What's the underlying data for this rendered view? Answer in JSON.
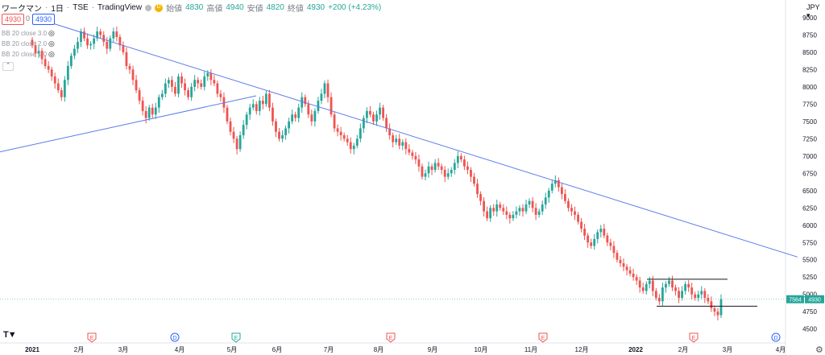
{
  "header": {
    "symbol": "ワークマン",
    "interval": "1日",
    "exchange": "TSE",
    "source": "TradingView",
    "open_label": "始値",
    "open": "4830",
    "high_label": "高値",
    "high": "4940",
    "low_label": "安値",
    "low": "4820",
    "close_label": "終値",
    "close": "4930",
    "change": "+200 (+4.23%)",
    "sell": "4930",
    "spread": "0",
    "buy": "4930"
  },
  "indicators": [
    "BB 20 close 3.0",
    "BB 20 close 2.0",
    "BB 20 close 1.0"
  ],
  "currency": "JPY",
  "colors": {
    "up": "#26a69a",
    "down": "#ef5350",
    "trend": "#5b7be8",
    "channel": "#131722",
    "earnings": "#ef5350",
    "dividend": "#2962ff",
    "price_badge": "#26a69a"
  },
  "chart_data": {
    "type": "candlestick",
    "x": [
      "2021",
      "2月",
      "3月",
      "4月",
      "5月",
      "6月",
      "7月",
      "8月",
      "9月",
      "10月",
      "11月",
      "12月",
      "2022",
      "2月",
      "3月",
      "4月"
    ],
    "ylim": [
      4450,
      9150
    ],
    "yticks": [
      4500,
      4750,
      5000,
      5250,
      5500,
      5750,
      6000,
      6250,
      6500,
      6750,
      7000,
      7250,
      7500,
      7750,
      8000,
      8250,
      8500,
      8750,
      9000
    ],
    "closes": [
      8600,
      8480,
      8520,
      8400,
      8300,
      8250,
      8150,
      8050,
      7950,
      7850,
      8100,
      8300,
      8450,
      8550,
      8650,
      8800,
      8700,
      8600,
      8620,
      8700,
      8800,
      8750,
      8650,
      8550,
      8700,
      8800,
      8720,
      8600,
      8500,
      8300,
      8250,
      8100,
      7950,
      7800,
      7650,
      7550,
      7700,
      7600,
      7700,
      7850,
      7900,
      8050,
      8100,
      8000,
      7900,
      8150,
      8050,
      7950,
      7850,
      8000,
      8100,
      8050,
      8000,
      8150,
      8200,
      8100,
      8050,
      7900,
      7850,
      7700,
      7500,
      7350,
      7250,
      7100,
      7300,
      7450,
      7600,
      7700,
      7750,
      7650,
      7800,
      7750,
      7900,
      7700,
      7500,
      7350,
      7250,
      7300,
      7400,
      7500,
      7600,
      7550,
      7700,
      7850,
      7750,
      7600,
      7500,
      7650,
      7800,
      7900,
      8050,
      7850,
      7600,
      7400,
      7350,
      7300,
      7250,
      7200,
      7100,
      7150,
      7250,
      7400,
      7550,
      7650,
      7600,
      7500,
      7600,
      7700,
      7550,
      7400,
      7300,
      7200,
      7250,
      7150,
      7200,
      7100,
      7050,
      7000,
      6950,
      6850,
      6700,
      6750,
      6850,
      6800,
      6900,
      6850,
      6800,
      6700,
      6750,
      6800,
      6900,
      7000,
      6950,
      6850,
      6800,
      6700,
      6600,
      6450,
      6350,
      6200,
      6100,
      6250,
      6200,
      6300,
      6250,
      6200,
      6150,
      6100,
      6150,
      6200,
      6250,
      6200,
      6300,
      6350,
      6250,
      6150,
      6200,
      6300,
      6400,
      6500,
      6600,
      6650,
      6550,
      6450,
      6350,
      6250,
      6200,
      6150,
      6050,
      5950,
      5850,
      5750,
      5700,
      5800,
      5900,
      5950,
      5850,
      5750,
      5700,
      5600,
      5500,
      5450,
      5400,
      5350,
      5300,
      5250,
      5200,
      5100,
      5050,
      5150,
      5200,
      5050,
      4950,
      4900,
      5100,
      5150,
      5200,
      5100,
      5050,
      4950,
      5050,
      5150,
      5100,
      5000,
      4950,
      5000,
      5050,
      4950,
      4900,
      4800,
      4750,
      4700,
      4930
    ]
  },
  "annotations": {
    "trend_main_label": "",
    "channel_top": 5220,
    "channel_bottom": 4830,
    "events": [
      {
        "type": "E",
        "color": "earnings"
      },
      {
        "type": "D",
        "color": "dividend"
      },
      {
        "type": "E",
        "color": "up"
      },
      {
        "type": "E",
        "color": "earnings"
      },
      {
        "type": "E",
        "color": "earnings"
      },
      {
        "type": "E",
        "color": "earnings"
      },
      {
        "type": "D",
        "color": "dividend"
      }
    ]
  },
  "price_badges": {
    "last": "4930",
    "other": "7564"
  }
}
